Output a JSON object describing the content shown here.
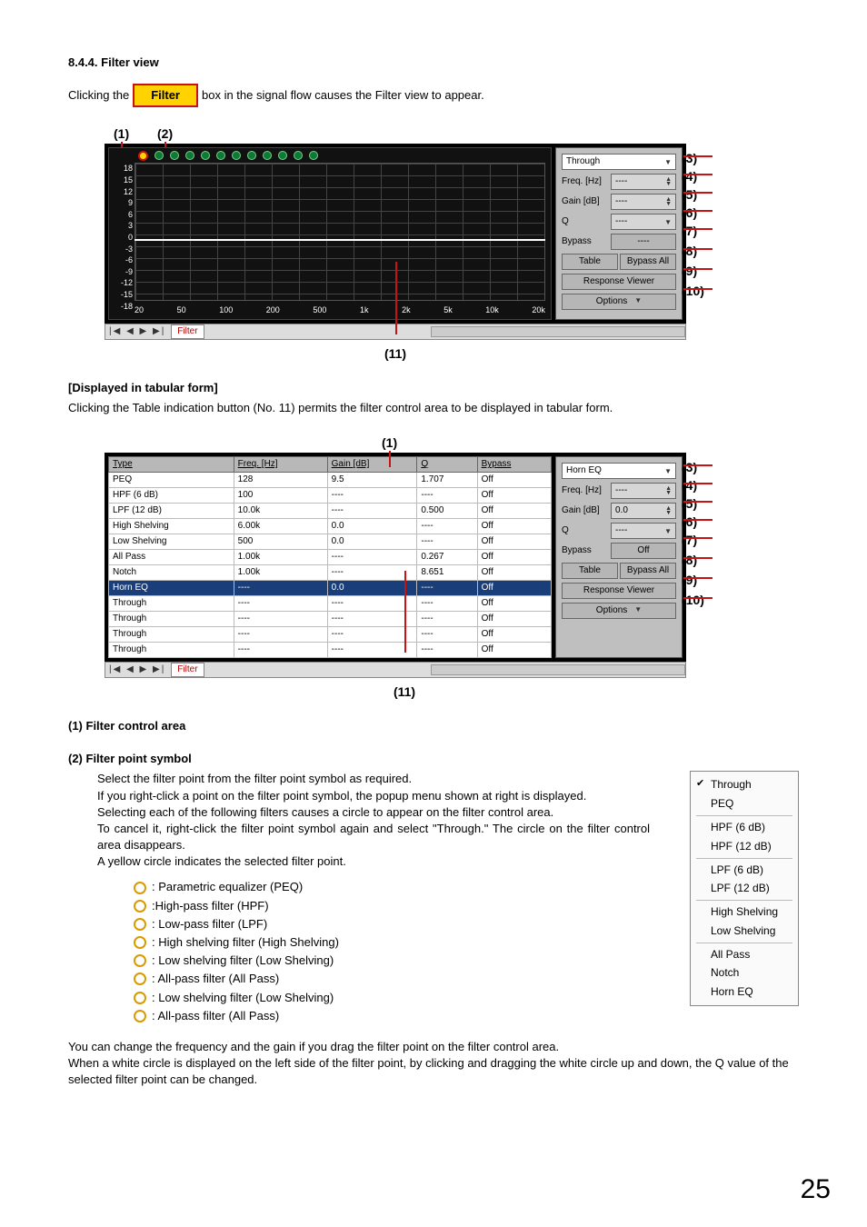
{
  "section_number": "8.4.4.",
  "section_title": "Filter view",
  "intro_pre": "Clicking the",
  "intro_button": "Filter",
  "intro_post": "box in the signal flow causes the Filter view to appear.",
  "fig1": {
    "markers": {
      "m1": "(1)",
      "m2": "(2)",
      "m3": "(3)",
      "m4": "(4)",
      "m5": "(5)",
      "m6": "(6)",
      "m7": "(7)",
      "m8": "(8)",
      "m9": "(9)",
      "m10": "(10)",
      "m11": "(11)"
    },
    "yticks": [
      "18",
      "15",
      "12",
      "9",
      "6",
      "3",
      "0",
      "-3",
      "-6",
      "-9",
      "-12",
      "-15",
      "-18"
    ],
    "xticks": [
      "20",
      "50",
      "100",
      "200",
      "500",
      "1k",
      "2k",
      "5k",
      "10k",
      "20k"
    ],
    "side": {
      "type_value": "Through",
      "freq_label": "Freq. [Hz]",
      "freq_value": "----",
      "gain_label": "Gain [dB]",
      "gain_value": "----",
      "q_label": "Q",
      "q_value": "----",
      "bypass_label": "Bypass",
      "bypass_value": "----",
      "btn_table": "Table",
      "btn_bypass_all": "Bypass All",
      "btn_response": "Response Viewer",
      "btn_options": "Options"
    },
    "tabbar_ctrl": "|◀ ◀ ▶ ▶|",
    "tabbar_tab": "Filter"
  },
  "tabular_heading": "[Displayed in tabular form]",
  "tabular_text": "Clicking the Table indication button (No. 11) permits the filter control area to be displayed in tabular form.",
  "fig2": {
    "markers": {
      "m1": "(1)",
      "m3": "(3)",
      "m4": "(4)",
      "m5": "(5)",
      "m6": "(6)",
      "m7": "(7)",
      "m8": "(8)",
      "m9": "(9)",
      "m10": "(10)",
      "m11": "(11)"
    },
    "columns": [
      "Type",
      "Freq. [Hz]",
      "Gain [dB]",
      "Q",
      "Bypass"
    ],
    "rows": [
      [
        "PEQ",
        "128",
        "9.5",
        "1.707",
        "Off"
      ],
      [
        "HPF (6 dB)",
        "100",
        "----",
        "----",
        "Off"
      ],
      [
        "LPF (12 dB)",
        "10.0k",
        "----",
        "0.500",
        "Off"
      ],
      [
        "High Shelving",
        "6.00k",
        "0.0",
        "----",
        "Off"
      ],
      [
        "Low Shelving",
        "500",
        "0.0",
        "----",
        "Off"
      ],
      [
        "All Pass",
        "1.00k",
        "----",
        "0.267",
        "Off"
      ],
      [
        "Notch",
        "1.00k",
        "----",
        "8.651",
        "Off"
      ],
      [
        "Horn EQ",
        "----",
        "0.0",
        "----",
        "Off"
      ],
      [
        "Through",
        "----",
        "----",
        "----",
        "Off"
      ],
      [
        "Through",
        "----",
        "----",
        "----",
        "Off"
      ],
      [
        "Through",
        "----",
        "----",
        "----",
        "Off"
      ],
      [
        "Through",
        "----",
        "----",
        "----",
        "Off"
      ]
    ],
    "selected_row_index": 7,
    "side": {
      "type_value": "Horn EQ",
      "freq_label": "Freq. [Hz]",
      "freq_value": "----",
      "gain_label": "Gain [dB]",
      "gain_value": "0.0",
      "q_label": "Q",
      "q_value": "----",
      "bypass_label": "Bypass",
      "bypass_value": "Off",
      "btn_table": "Table",
      "btn_bypass_all": "Bypass All",
      "btn_response": "Response Viewer",
      "btn_options": "Options"
    }
  },
  "h_filter_control": "(1) Filter control area",
  "h_filter_point": "(2) Filter point symbol",
  "fp_text1": "Select the filter point from the filter point symbol as required.",
  "fp_text2": "If you right-click a point on the filter point symbol, the popup menu shown at right is displayed.",
  "fp_text3": "Selecting each of the following filters causes a circle to appear on the filter control area.",
  "fp_text4": "To cancel it, right-click the filter point symbol again and select \"Through.\" The circle on the filter control area disappears.",
  "fp_text5": "A yellow circle indicates the selected filter point.",
  "popup_items": [
    {
      "label": "Through",
      "checked": true
    },
    {
      "label": "PEQ"
    },
    {
      "sep": true
    },
    {
      "label": "HPF (6 dB)"
    },
    {
      "label": "HPF (12 dB)"
    },
    {
      "sep": true
    },
    {
      "label": "LPF (6 dB)"
    },
    {
      "label": "LPF (12 dB)"
    },
    {
      "sep": true
    },
    {
      "label": "High Shelving"
    },
    {
      "label": "Low Shelving"
    },
    {
      "sep": true
    },
    {
      "label": "All Pass"
    },
    {
      "label": "Notch"
    },
    {
      "label": "Horn EQ"
    }
  ],
  "legend": [
    {
      "color": "#d99a00",
      "text": ": Parametric equalizer (PEQ)"
    },
    {
      "color": "#d99a00",
      "text": ":High-pass filter (HPF)"
    },
    {
      "color": "#d99a00",
      "text": ": Low-pass filter (LPF)"
    },
    {
      "color": "#d99a00",
      "text": ": High shelving filter (High Shelving)"
    },
    {
      "color": "#d99a00",
      "text": ": Low shelving filter (Low Shelving)"
    },
    {
      "color": "#d99a00",
      "text": ": All-pass filter (All Pass)"
    },
    {
      "color": "#d99a00",
      "text": ": Low shelving filter (Low Shelving)"
    },
    {
      "color": "#d99a00",
      "text": ": All-pass filter (All Pass)"
    }
  ],
  "footer1": "You can change the frequency and the gain if you drag the filter point on the filter control area.",
  "footer2": "When a white circle is displayed on the left side of the filter point, by clicking and dragging the white circle up and down, the Q value of the selected filter point can be changed.",
  "page_number": "25",
  "colors": {
    "red": "#c91212",
    "yellow": "#ffd200",
    "panel_gray": "#bfbfbf"
  }
}
